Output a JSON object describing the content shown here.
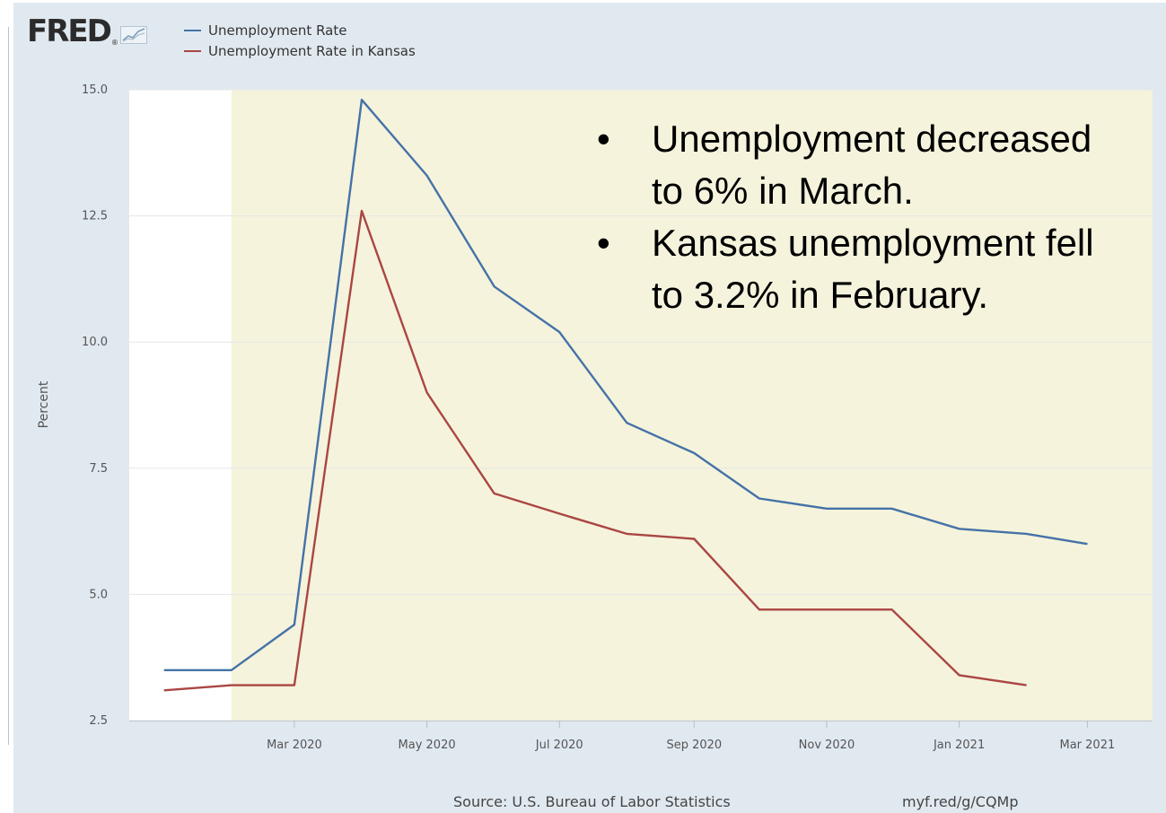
{
  "branding": {
    "logo_text": "FRED",
    "registered_mark": "®",
    "spark_icon": "fred-sparkline-icon"
  },
  "annotation": {
    "bullets": [
      "Unemployment decreased to 6% in March.",
      "Kansas unemployment fell to 3.2% in February."
    ],
    "bullet_glyph": "•"
  },
  "footer": {
    "source": "Source: U.S. Bureau of Labor Statistics",
    "link": "myf.red/g/CQMp"
  },
  "chart_data": {
    "type": "line",
    "ylabel": "Percent",
    "ylim": [
      2.5,
      15.0
    ],
    "yticks": [
      "15.0",
      "12.5",
      "10.0",
      "7.5",
      "5.0",
      "2.5"
    ],
    "ytick_values": [
      15.0,
      12.5,
      10.0,
      7.5,
      5.0,
      2.5
    ],
    "x": [
      "2020-01",
      "2020-02",
      "2020-03",
      "2020-04",
      "2020-05",
      "2020-06",
      "2020-07",
      "2020-08",
      "2020-09",
      "2020-10",
      "2020-11",
      "2020-12",
      "2021-01",
      "2021-02",
      "2021-03"
    ],
    "xlim": [
      "2019-12-16",
      "2021-03-31"
    ],
    "xticks": [
      {
        "label": "Mar 2020",
        "date": "2020-03-01"
      },
      {
        "label": "May 2020",
        "date": "2020-05-01"
      },
      {
        "label": "Jul 2020",
        "date": "2020-07-01"
      },
      {
        "label": "Sep 2020",
        "date": "2020-09-01"
      },
      {
        "label": "Nov 2020",
        "date": "2020-11-01"
      },
      {
        "label": "Jan 2021",
        "date": "2021-01-01"
      },
      {
        "label": "Mar 2021",
        "date": "2021-03-01"
      }
    ],
    "shaded_region": {
      "from": "2020-02-01",
      "to": "2021-03-31",
      "color": "#f5f3dc"
    },
    "plot_background": "#ffffff",
    "grid": true,
    "grid_color": "#e6e6e6",
    "legend_position": "top-left",
    "series": [
      {
        "name": "Unemployment Rate",
        "color": "#4572a7",
        "values": [
          3.5,
          3.5,
          4.4,
          14.8,
          13.3,
          11.1,
          10.2,
          8.4,
          7.8,
          6.9,
          6.7,
          6.7,
          6.3,
          6.2,
          6.0
        ]
      },
      {
        "name": "Unemployment Rate in Kansas",
        "color": "#aa4643",
        "values": [
          3.1,
          3.2,
          3.2,
          12.6,
          9.0,
          7.0,
          6.6,
          6.2,
          6.1,
          4.7,
          4.7,
          4.7,
          3.4,
          3.2,
          null
        ]
      }
    ]
  }
}
